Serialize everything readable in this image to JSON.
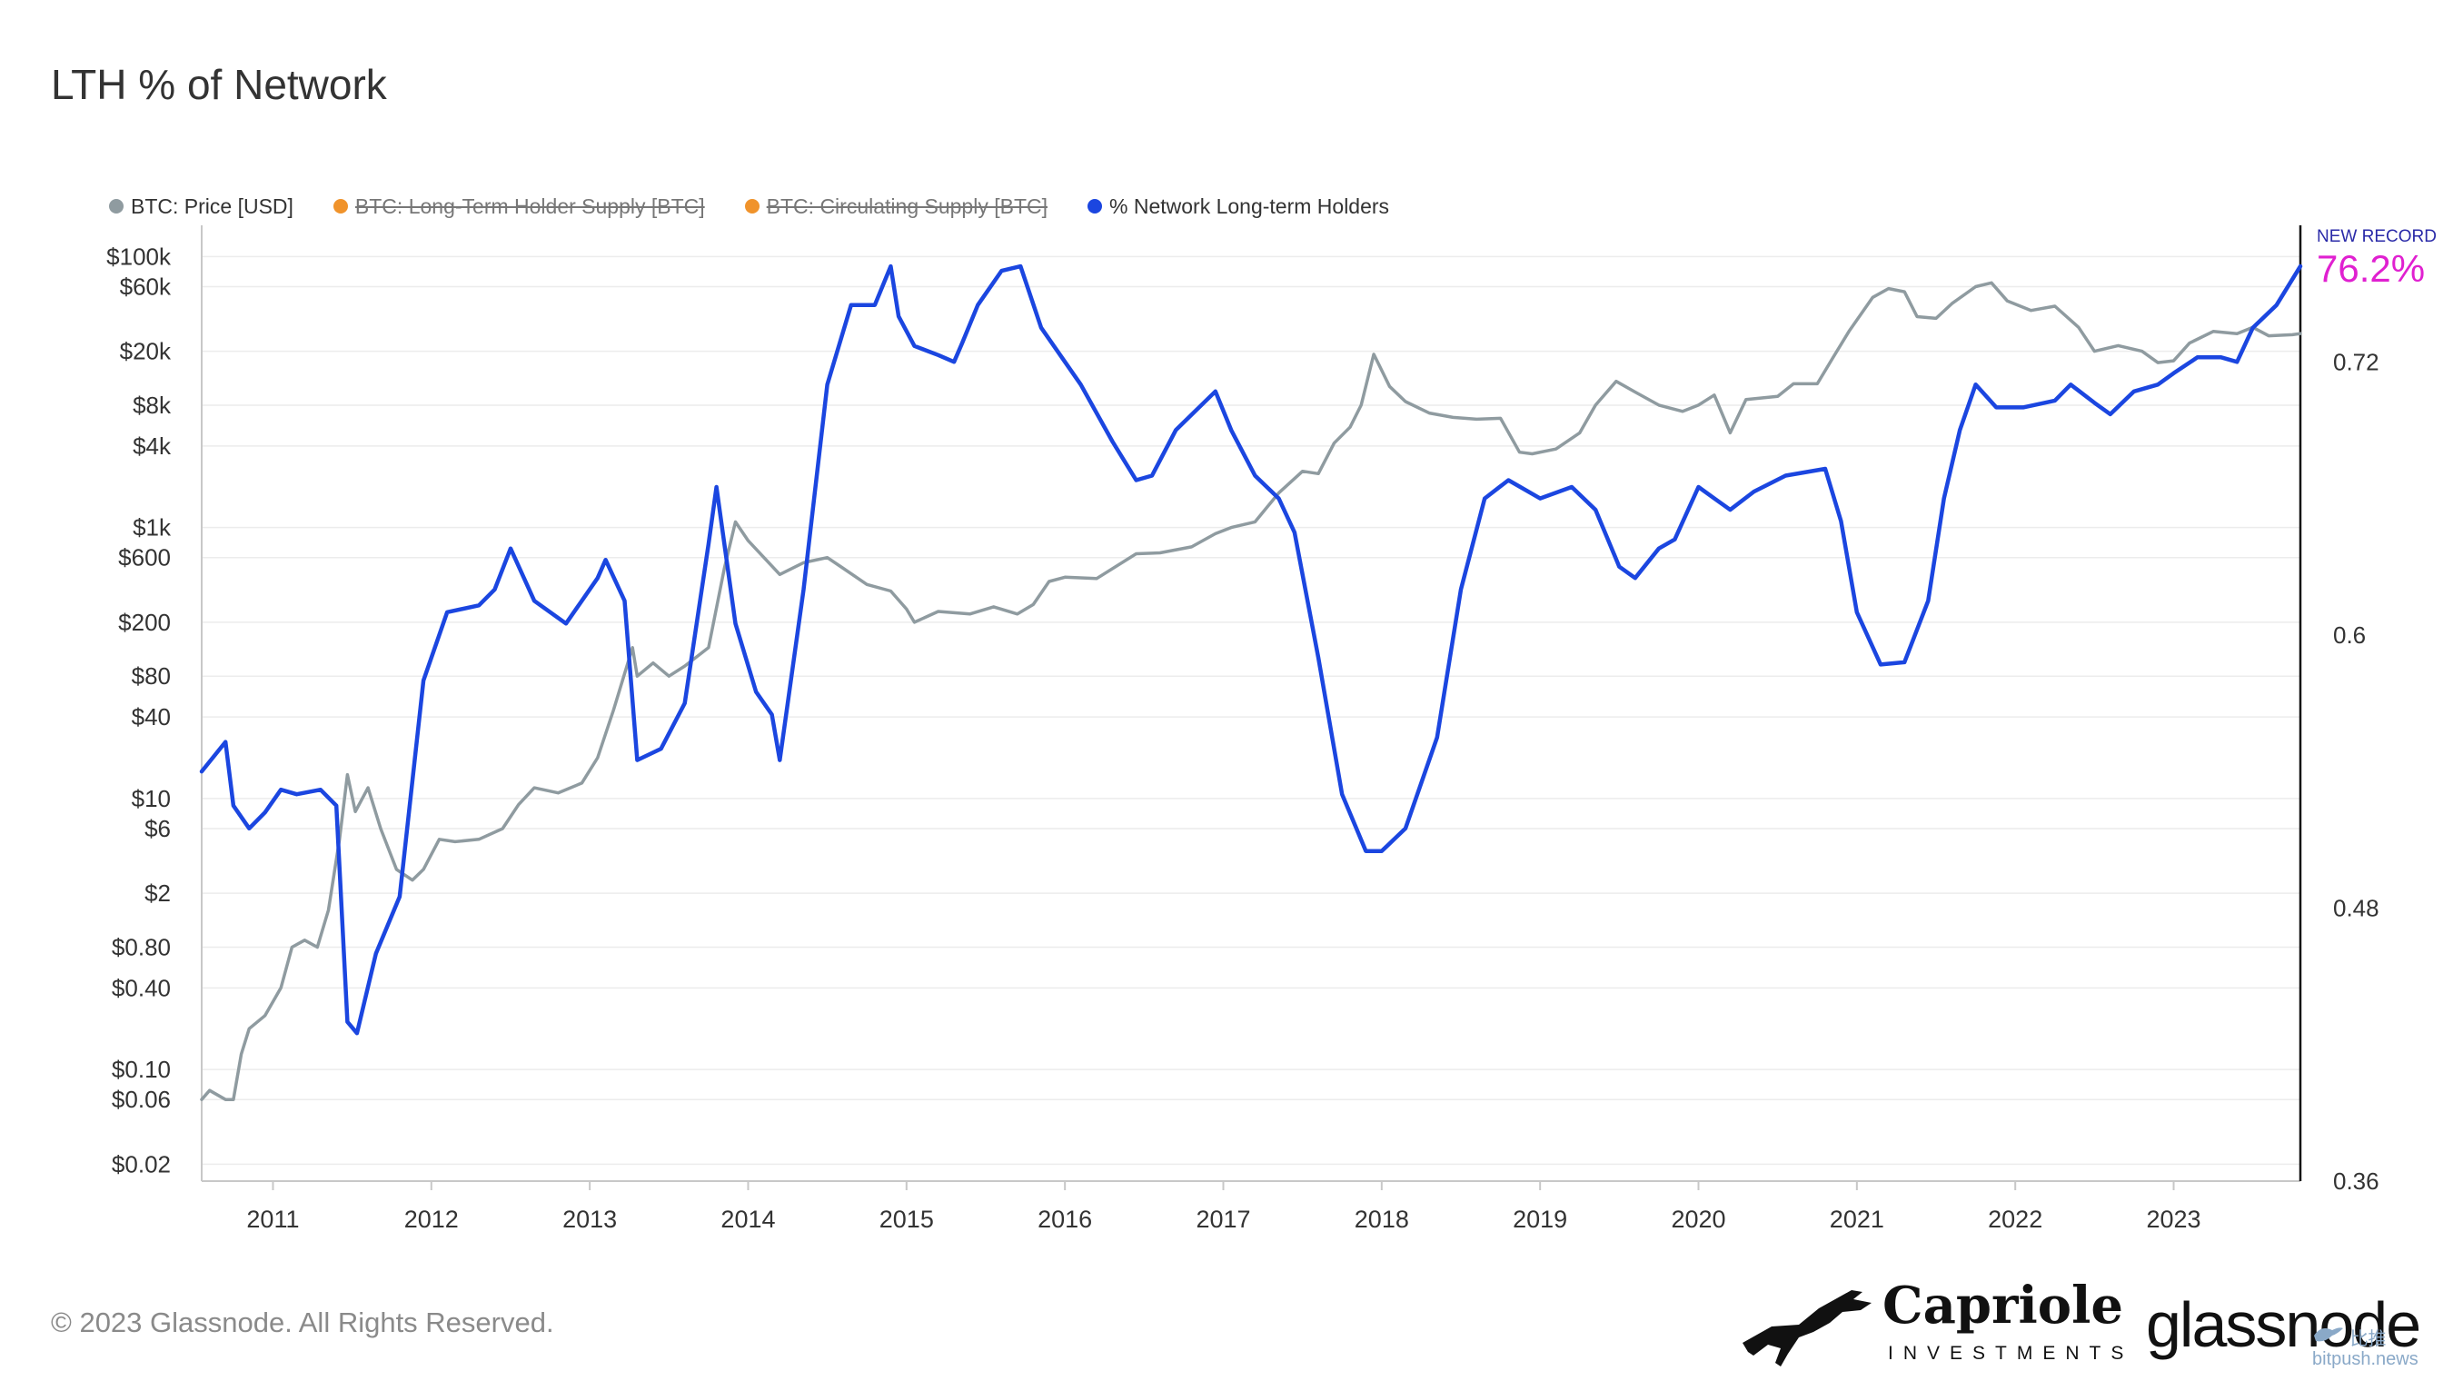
{
  "header": {
    "title": "LTH % of Network"
  },
  "legend": [
    {
      "label": "BTC: Price [USD]",
      "color": "#8f9ba0",
      "hidden": false
    },
    {
      "label": "BTC: Long-Term Holder Supply [BTC]",
      "color": "#f0932b",
      "hidden": true
    },
    {
      "label": "BTC: Circulating Supply [BTC]",
      "color": "#f0932b",
      "hidden": true
    },
    {
      "label": "% Network Long-term Holders",
      "color": "#1b46e0",
      "hidden": false
    }
  ],
  "annotation": {
    "label": "NEW RECORD",
    "value": "76.2%",
    "label_color": "#2a2aa8",
    "value_color": "#e020d0"
  },
  "footer": {
    "copyright": "© 2023 Glassnode. All Rights Reserved.",
    "capriole_name": "Capriole",
    "capriole_sub": "INVESTMENTS",
    "glassnode_logo": "glassnode",
    "watermark_cn": "比推",
    "watermark_url": "bitpush.news"
  },
  "chart_data": {
    "type": "line",
    "x_tick_labels": [
      "2011",
      "2012",
      "2013",
      "2014",
      "2015",
      "2016",
      "2017",
      "2018",
      "2019",
      "2020",
      "2021",
      "2022",
      "2023"
    ],
    "x_range": [
      2010.55,
      2023.8
    ],
    "y_left": {
      "scale": "log",
      "range": [
        0.015,
        170000
      ],
      "ticks": [
        {
          "v": 100000,
          "t": "$100k"
        },
        {
          "v": 60000,
          "t": "$60k"
        },
        {
          "v": 20000,
          "t": "$20k"
        },
        {
          "v": 8000,
          "t": "$8k"
        },
        {
          "v": 4000,
          "t": "$4k"
        },
        {
          "v": 1000,
          "t": "$1k"
        },
        {
          "v": 600,
          "t": "$600"
        },
        {
          "v": 200,
          "t": "$200"
        },
        {
          "v": 80,
          "t": "$80"
        },
        {
          "v": 40,
          "t": "$40"
        },
        {
          "v": 10,
          "t": "$10"
        },
        {
          "v": 6,
          "t": "$6"
        },
        {
          "v": 2,
          "t": "$2"
        },
        {
          "v": 0.8,
          "t": "$0.80"
        },
        {
          "v": 0.4,
          "t": "$0.40"
        },
        {
          "v": 0.1,
          "t": "$0.10"
        },
        {
          "v": 0.06,
          "t": "$0.06"
        },
        {
          "v": 0.02,
          "t": "$0.02"
        }
      ]
    },
    "y_right": {
      "scale": "linear",
      "range": [
        0.36,
        0.78
      ],
      "ticks": [
        {
          "v": 0.72,
          "t": "0.72"
        },
        {
          "v": 0.6,
          "t": "0.6"
        },
        {
          "v": 0.48,
          "t": "0.48"
        },
        {
          "v": 0.36,
          "t": "0.36"
        }
      ]
    },
    "grid": true,
    "series": [
      {
        "name": "BTC: Price [USD]",
        "axis": "left",
        "color": "#8f9ba0",
        "points": [
          [
            2010.55,
            0.06
          ],
          [
            2010.6,
            0.07
          ],
          [
            2010.7,
            0.06
          ],
          [
            2010.75,
            0.06
          ],
          [
            2010.8,
            0.13
          ],
          [
            2010.85,
            0.2
          ],
          [
            2010.95,
            0.25
          ],
          [
            2011.05,
            0.4
          ],
          [
            2011.12,
            0.8
          ],
          [
            2011.2,
            0.9
          ],
          [
            2011.28,
            0.8
          ],
          [
            2011.35,
            1.5
          ],
          [
            2011.42,
            5
          ],
          [
            2011.47,
            15
          ],
          [
            2011.52,
            8
          ],
          [
            2011.6,
            12
          ],
          [
            2011.68,
            6
          ],
          [
            2011.78,
            3
          ],
          [
            2011.88,
            2.5
          ],
          [
            2011.95,
            3
          ],
          [
            2012.05,
            5
          ],
          [
            2012.15,
            4.8
          ],
          [
            2012.3,
            5
          ],
          [
            2012.45,
            6
          ],
          [
            2012.55,
            9
          ],
          [
            2012.65,
            12
          ],
          [
            2012.8,
            11
          ],
          [
            2012.95,
            13
          ],
          [
            2013.05,
            20
          ],
          [
            2013.15,
            45
          ],
          [
            2013.27,
            130
          ],
          [
            2013.3,
            80
          ],
          [
            2013.4,
            100
          ],
          [
            2013.5,
            80
          ],
          [
            2013.6,
            95
          ],
          [
            2013.75,
            130
          ],
          [
            2013.85,
            500
          ],
          [
            2013.92,
            1100
          ],
          [
            2014.0,
            800
          ],
          [
            2014.1,
            600
          ],
          [
            2014.2,
            450
          ],
          [
            2014.35,
            550
          ],
          [
            2014.5,
            600
          ],
          [
            2014.6,
            500
          ],
          [
            2014.75,
            380
          ],
          [
            2014.9,
            340
          ],
          [
            2015.0,
            250
          ],
          [
            2015.05,
            200
          ],
          [
            2015.2,
            240
          ],
          [
            2015.4,
            230
          ],
          [
            2015.55,
            260
          ],
          [
            2015.7,
            230
          ],
          [
            2015.8,
            270
          ],
          [
            2015.9,
            400
          ],
          [
            2016.0,
            430
          ],
          [
            2016.2,
            420
          ],
          [
            2016.45,
            640
          ],
          [
            2016.6,
            650
          ],
          [
            2016.8,
            720
          ],
          [
            2016.95,
            900
          ],
          [
            2017.05,
            1000
          ],
          [
            2017.2,
            1100
          ],
          [
            2017.35,
            1800
          ],
          [
            2017.5,
            2600
          ],
          [
            2017.6,
            2500
          ],
          [
            2017.7,
            4200
          ],
          [
            2017.8,
            5500
          ],
          [
            2017.87,
            8000
          ],
          [
            2017.95,
            19000
          ],
          [
            2018.05,
            11000
          ],
          [
            2018.15,
            8500
          ],
          [
            2018.3,
            7000
          ],
          [
            2018.45,
            6500
          ],
          [
            2018.6,
            6300
          ],
          [
            2018.75,
            6400
          ],
          [
            2018.87,
            3600
          ],
          [
            2018.95,
            3500
          ],
          [
            2019.1,
            3800
          ],
          [
            2019.25,
            5000
          ],
          [
            2019.35,
            8000
          ],
          [
            2019.48,
            12000
          ],
          [
            2019.6,
            10000
          ],
          [
            2019.75,
            8000
          ],
          [
            2019.9,
            7200
          ],
          [
            2020.0,
            8000
          ],
          [
            2020.1,
            9500
          ],
          [
            2020.2,
            5000
          ],
          [
            2020.3,
            8800
          ],
          [
            2020.5,
            9300
          ],
          [
            2020.6,
            11500
          ],
          [
            2020.75,
            11500
          ],
          [
            2020.85,
            18000
          ],
          [
            2020.95,
            28000
          ],
          [
            2021.1,
            50000
          ],
          [
            2021.2,
            58000
          ],
          [
            2021.3,
            55000
          ],
          [
            2021.38,
            36000
          ],
          [
            2021.5,
            35000
          ],
          [
            2021.6,
            45000
          ],
          [
            2021.75,
            60000
          ],
          [
            2021.85,
            64000
          ],
          [
            2021.95,
            47000
          ],
          [
            2022.1,
            40000
          ],
          [
            2022.25,
            43000
          ],
          [
            2022.4,
            30000
          ],
          [
            2022.5,
            20000
          ],
          [
            2022.65,
            22000
          ],
          [
            2022.8,
            20000
          ],
          [
            2022.9,
            16500
          ],
          [
            2023.0,
            17000
          ],
          [
            2023.1,
            23000
          ],
          [
            2023.25,
            28000
          ],
          [
            2023.4,
            27000
          ],
          [
            2023.5,
            30000
          ],
          [
            2023.6,
            26000
          ],
          [
            2023.75,
            26500
          ],
          [
            2023.8,
            27000
          ]
        ]
      },
      {
        "name": "% Network Long-term Holders",
        "axis": "right",
        "color": "#1b46e0",
        "points": [
          [
            2010.55,
            0.54
          ],
          [
            2010.7,
            0.553
          ],
          [
            2010.75,
            0.525
          ],
          [
            2010.85,
            0.515
          ],
          [
            2010.95,
            0.522
          ],
          [
            2011.05,
            0.532
          ],
          [
            2011.15,
            0.53
          ],
          [
            2011.3,
            0.532
          ],
          [
            2011.4,
            0.525
          ],
          [
            2011.47,
            0.43
          ],
          [
            2011.53,
            0.425
          ],
          [
            2011.65,
            0.46
          ],
          [
            2011.8,
            0.485
          ],
          [
            2011.95,
            0.58
          ],
          [
            2012.1,
            0.61
          ],
          [
            2012.3,
            0.613
          ],
          [
            2012.4,
            0.62
          ],
          [
            2012.5,
            0.638
          ],
          [
            2012.65,
            0.615
          ],
          [
            2012.85,
            0.605
          ],
          [
            2013.05,
            0.625
          ],
          [
            2013.1,
            0.633
          ],
          [
            2013.22,
            0.615
          ],
          [
            2013.3,
            0.545
          ],
          [
            2013.45,
            0.55
          ],
          [
            2013.6,
            0.57
          ],
          [
            2013.75,
            0.64
          ],
          [
            2013.8,
            0.665
          ],
          [
            2013.83,
            0.65
          ],
          [
            2013.92,
            0.605
          ],
          [
            2014.05,
            0.575
          ],
          [
            2014.15,
            0.565
          ],
          [
            2014.2,
            0.545
          ],
          [
            2014.35,
            0.62
          ],
          [
            2014.5,
            0.71
          ],
          [
            2014.65,
            0.745
          ],
          [
            2014.8,
            0.745
          ],
          [
            2014.9,
            0.762
          ],
          [
            2014.95,
            0.74
          ],
          [
            2015.05,
            0.727
          ],
          [
            2015.2,
            0.723
          ],
          [
            2015.3,
            0.72
          ],
          [
            2015.35,
            0.728
          ],
          [
            2015.45,
            0.745
          ],
          [
            2015.6,
            0.76
          ],
          [
            2015.72,
            0.762
          ],
          [
            2015.85,
            0.735
          ],
          [
            2016.0,
            0.72
          ],
          [
            2016.1,
            0.71
          ],
          [
            2016.3,
            0.685
          ],
          [
            2016.45,
            0.668
          ],
          [
            2016.55,
            0.67
          ],
          [
            2016.7,
            0.69
          ],
          [
            2016.95,
            0.707
          ],
          [
            2017.05,
            0.69
          ],
          [
            2017.2,
            0.67
          ],
          [
            2017.35,
            0.66
          ],
          [
            2017.45,
            0.645
          ],
          [
            2017.6,
            0.59
          ],
          [
            2017.75,
            0.53
          ],
          [
            2017.9,
            0.505
          ],
          [
            2018.0,
            0.505
          ],
          [
            2018.15,
            0.515
          ],
          [
            2018.35,
            0.555
          ],
          [
            2018.5,
            0.62
          ],
          [
            2018.65,
            0.66
          ],
          [
            2018.8,
            0.668
          ],
          [
            2019.0,
            0.66
          ],
          [
            2019.2,
            0.665
          ],
          [
            2019.35,
            0.655
          ],
          [
            2019.5,
            0.63
          ],
          [
            2019.6,
            0.625
          ],
          [
            2019.75,
            0.638
          ],
          [
            2019.85,
            0.642
          ],
          [
            2020.0,
            0.665
          ],
          [
            2020.1,
            0.66
          ],
          [
            2020.2,
            0.655
          ],
          [
            2020.35,
            0.663
          ],
          [
            2020.55,
            0.67
          ],
          [
            2020.8,
            0.673
          ],
          [
            2020.9,
            0.65
          ],
          [
            2021.0,
            0.61
          ],
          [
            2021.15,
            0.587
          ],
          [
            2021.3,
            0.588
          ],
          [
            2021.45,
            0.615
          ],
          [
            2021.55,
            0.66
          ],
          [
            2021.65,
            0.69
          ],
          [
            2021.75,
            0.71
          ],
          [
            2021.88,
            0.7
          ],
          [
            2022.05,
            0.7
          ],
          [
            2022.25,
            0.703
          ],
          [
            2022.35,
            0.71
          ],
          [
            2022.5,
            0.702
          ],
          [
            2022.6,
            0.697
          ],
          [
            2022.75,
            0.707
          ],
          [
            2022.9,
            0.71
          ],
          [
            2023.0,
            0.715
          ],
          [
            2023.15,
            0.722
          ],
          [
            2023.3,
            0.722
          ],
          [
            2023.4,
            0.72
          ],
          [
            2023.5,
            0.735
          ],
          [
            2023.65,
            0.745
          ],
          [
            2023.8,
            0.762
          ]
        ]
      }
    ]
  }
}
